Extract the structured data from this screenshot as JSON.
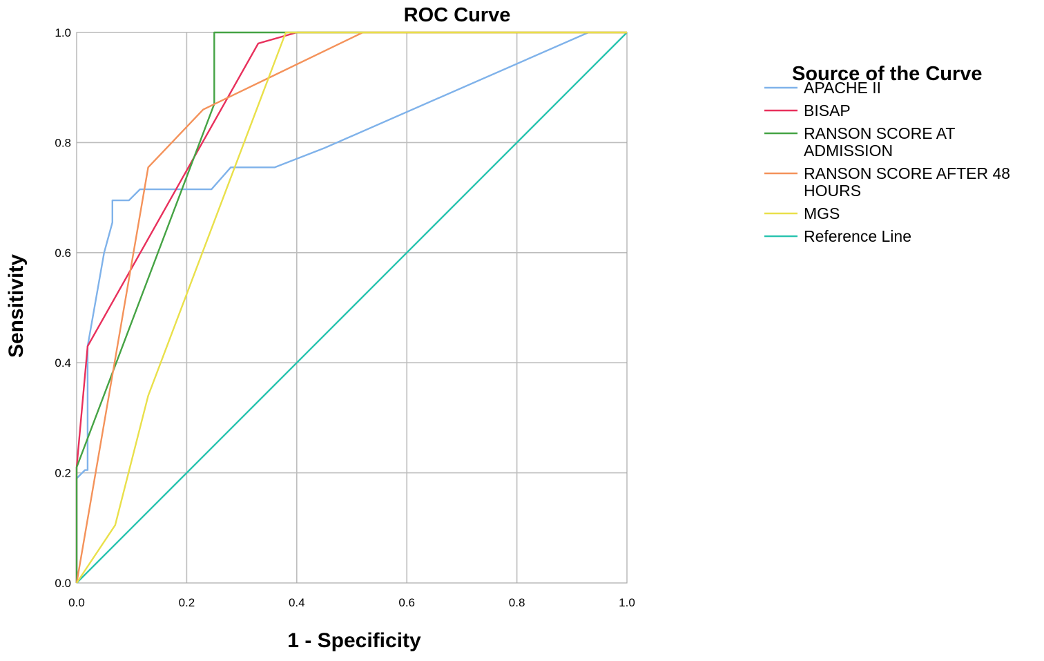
{
  "chart_data": {
    "type": "line",
    "title": "ROC Curve",
    "xlabel": "1 - Specificity",
    "ylabel": "Sensitivity",
    "xlim": [
      0,
      1
    ],
    "ylim": [
      0,
      1
    ],
    "xticks": [
      "0.0",
      "0.2",
      "0.4",
      "0.6",
      "0.8",
      "1.0"
    ],
    "yticks": [
      "0.0",
      "0.2",
      "0.4",
      "0.6",
      "0.8",
      "1.0"
    ],
    "grid": true,
    "legend": {
      "title": "Source of the Curve",
      "placement": "top-right, outside plot"
    },
    "series": [
      {
        "name": "APACHE II",
        "color": "#7fb2ea",
        "points": [
          [
            0,
            0
          ],
          [
            0,
            0.19
          ],
          [
            0.015,
            0.205
          ],
          [
            0.02,
            0.205
          ],
          [
            0.02,
            0.43
          ],
          [
            0.05,
            0.6
          ],
          [
            0.065,
            0.655
          ],
          [
            0.065,
            0.695
          ],
          [
            0.095,
            0.695
          ],
          [
            0.115,
            0.715
          ],
          [
            0.245,
            0.715
          ],
          [
            0.28,
            0.755
          ],
          [
            0.36,
            0.755
          ],
          [
            0.45,
            0.79
          ],
          [
            0.93,
            1.0
          ],
          [
            1.0,
            1.0
          ]
        ]
      },
      {
        "name": "BISAP",
        "color": "#e8305c",
        "points": [
          [
            0,
            0
          ],
          [
            0,
            0.21
          ],
          [
            0.02,
            0.43
          ],
          [
            0.33,
            0.98
          ],
          [
            0.4,
            1.0
          ],
          [
            1.0,
            1.0
          ]
        ]
      },
      {
        "name": "RANSON SCORE AT ADMISSION",
        "label_lines": [
          "RANSON SCORE AT",
          "ADMISSION"
        ],
        "color": "#45a344",
        "points": [
          [
            0,
            0
          ],
          [
            0,
            0.21
          ],
          [
            0.25,
            0.87
          ],
          [
            0.25,
            1.0
          ],
          [
            1.0,
            1.0
          ]
        ]
      },
      {
        "name": "RANSON SCORE AFTER 48 HOURS",
        "label_lines": [
          "RANSON SCORE AFTER 48",
          "HOURS"
        ],
        "color": "#f4925a",
        "points": [
          [
            0,
            0
          ],
          [
            0.13,
            0.755
          ],
          [
            0.23,
            0.86
          ],
          [
            0.52,
            1.0
          ],
          [
            1.0,
            1.0
          ]
        ]
      },
      {
        "name": "MGS",
        "color": "#e9e04a",
        "points": [
          [
            0,
            0
          ],
          [
            0.07,
            0.105
          ],
          [
            0.13,
            0.34
          ],
          [
            0.38,
            1.0
          ],
          [
            1.0,
            1.0
          ]
        ]
      },
      {
        "name": "Reference Line",
        "color": "#2ac4b0",
        "points": [
          [
            0,
            0
          ],
          [
            1.0,
            1.0
          ]
        ]
      }
    ]
  }
}
